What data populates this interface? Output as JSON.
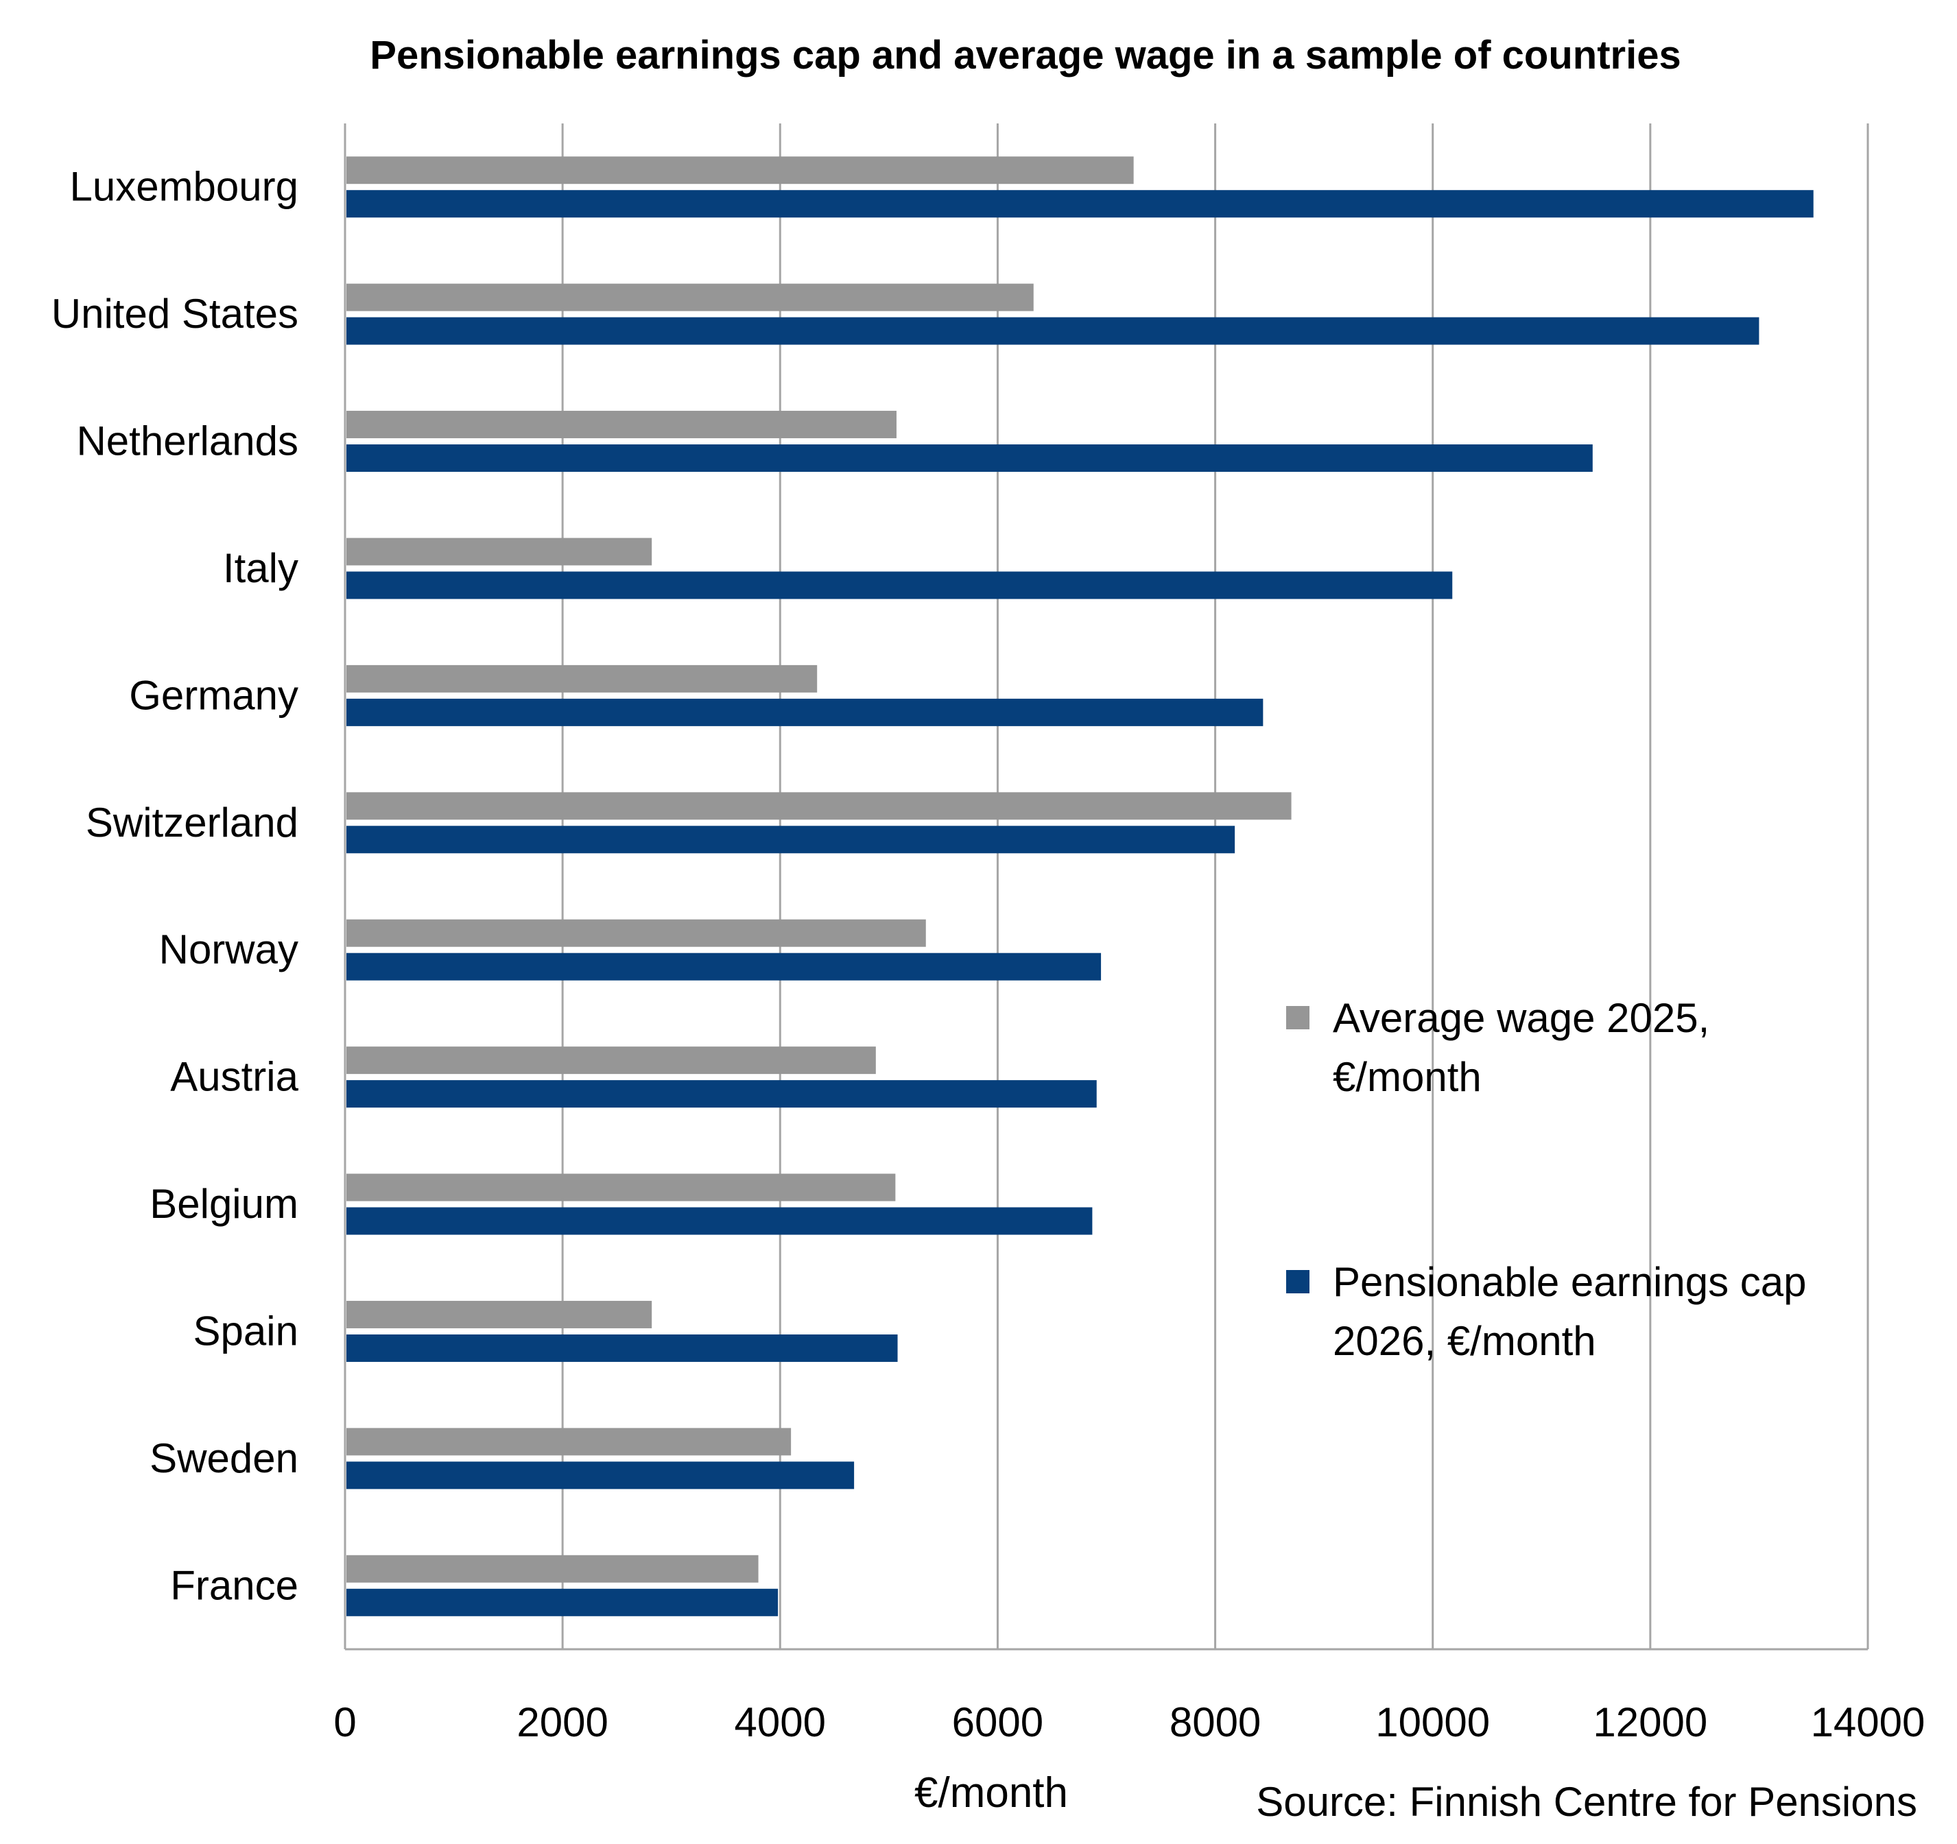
{
  "chart_data": {
    "type": "bar",
    "orientation": "horizontal",
    "title": "Pensionable earnings cap and average wage in a sample of countries",
    "xlabel": "€/month",
    "ylabel": "",
    "source": "Source: Finnish Centre for Pensions",
    "categories": [
      "Luxembourg",
      "United States",
      "Netherlands",
      "Italy",
      "Germany",
      "Switzerland",
      "Norway",
      "Austria",
      "Belgium",
      "Spain",
      "Sweden",
      "France"
    ],
    "series": [
      {
        "name": "Average wage 2025, €/month",
        "legend_lines": [
          "Average wage 2025,",
          "€/month"
        ],
        "color": "#969696",
        "values": [
          7250,
          6330,
          5070,
          2820,
          4340,
          8700,
          5340,
          4880,
          5060,
          2820,
          4100,
          3800
        ]
      },
      {
        "name": "Pensionable earnings cap 2026, €/month",
        "legend_lines": [
          "Pensionable earnings cap",
          "2026, €/month"
        ],
        "color": "#063f7b",
        "values": [
          13500,
          13000,
          11470,
          10180,
          8440,
          8180,
          6950,
          6910,
          6870,
          5080,
          4680,
          3980
        ]
      }
    ],
    "xlim": [
      0,
      14000
    ],
    "xticks": [
      0,
      2000,
      4000,
      6000,
      8000,
      10000,
      12000,
      14000
    ],
    "xtick_labels": [
      "0",
      "2000",
      "4000",
      "6000",
      "8000",
      "10000",
      "12000",
      "14000"
    ],
    "grid": "vertical",
    "legend_position": "right"
  }
}
